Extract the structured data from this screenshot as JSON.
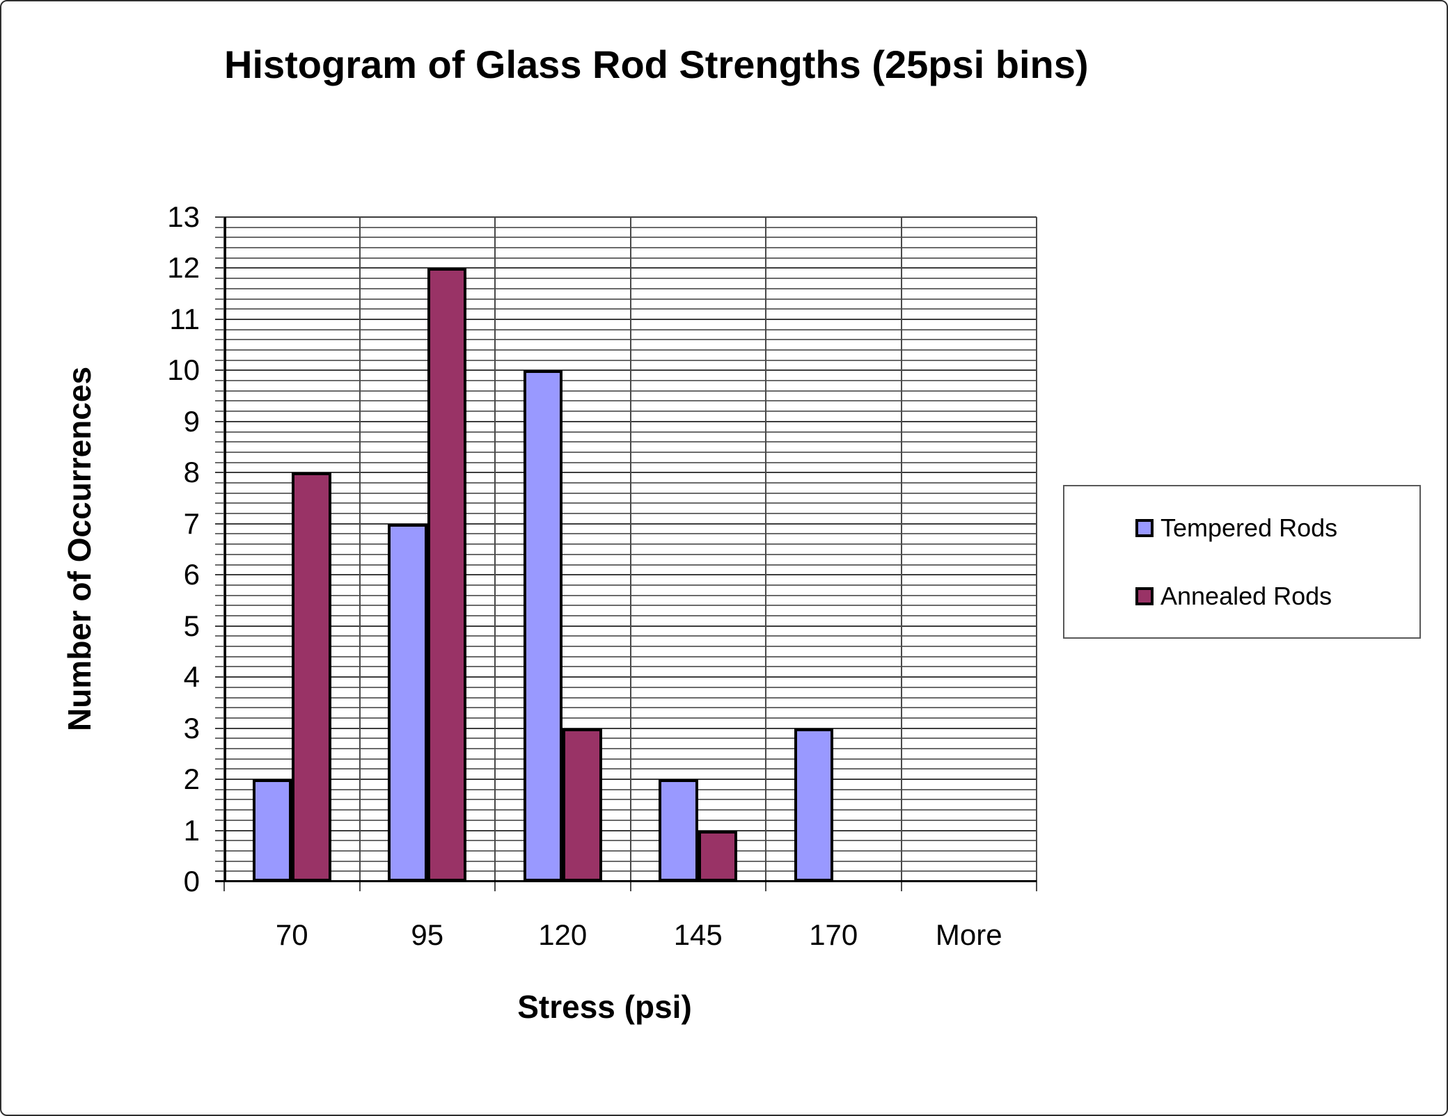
{
  "chart_data": {
    "type": "bar",
    "title": "Histogram of Glass Rod Strengths (25psi bins)",
    "xlabel": "Stress (psi)",
    "ylabel": "Number of Occurrences",
    "categories": [
      "70",
      "95",
      "120",
      "145",
      "170",
      "More"
    ],
    "series": [
      {
        "name": "Tempered Rods",
        "color": "#9999FF",
        "values": [
          2,
          7,
          10,
          2,
          3,
          0
        ]
      },
      {
        "name": "Annealed Rods",
        "color": "#993366",
        "values": [
          8,
          12,
          3,
          1,
          0,
          0
        ]
      }
    ],
    "ylim": [
      0,
      13
    ],
    "y_ticks": [
      0,
      1,
      2,
      3,
      4,
      5,
      6,
      7,
      8,
      9,
      10,
      11,
      12,
      13
    ],
    "y_major_unit": 1,
    "y_minor_unit": 0.2,
    "grid": "horizontal major+minor lines, vertical lines at category boundaries",
    "legend_position": "right",
    "bar_border_color": "#000000",
    "gridline_color": "#6b6b6b",
    "major_gridline_color": "#3d3d3d",
    "axis_color": "#000000"
  }
}
